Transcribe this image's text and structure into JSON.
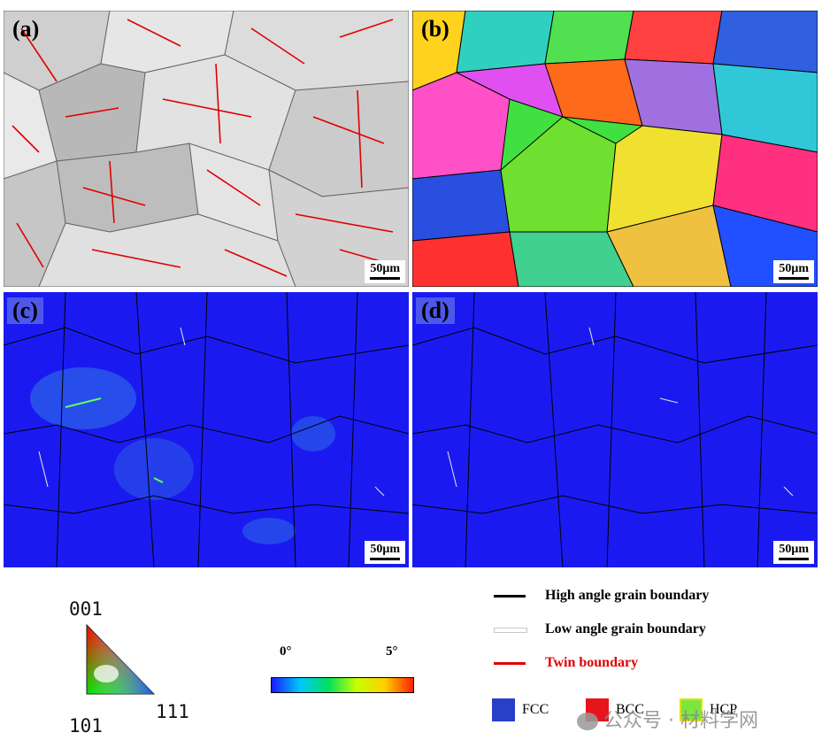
{
  "panels": {
    "a": {
      "label": "(a)",
      "scale": "50μm"
    },
    "b": {
      "label": "(b)",
      "scale": "50μm"
    },
    "c": {
      "label": "(c)",
      "scale": "50μm"
    },
    "d": {
      "label": "(d)",
      "scale": "50μm"
    }
  },
  "ipf_key": {
    "top": "001",
    "bottom_left": "101",
    "bottom_right": "111"
  },
  "kam_colorbar": {
    "min": "0°",
    "max": "5°"
  },
  "boundary_legend": [
    {
      "label": "High angle grain boundary",
      "color": "#000000"
    },
    {
      "label": "Low angle grain boundary",
      "color": "#e8e8e8"
    },
    {
      "label": "Twin boundary",
      "color": "#e00000"
    }
  ],
  "phase_legend": [
    {
      "label": "FCC",
      "color": "#2a3fc8"
    },
    {
      "label": "BCC",
      "color": "#e8141c"
    },
    {
      "label": "HCP",
      "color": "#7ce640"
    }
  ],
  "watermark": "公众号 · 材料学网",
  "colors": {
    "map_blue": "#1a1af0",
    "twin_red": "#e00000"
  }
}
